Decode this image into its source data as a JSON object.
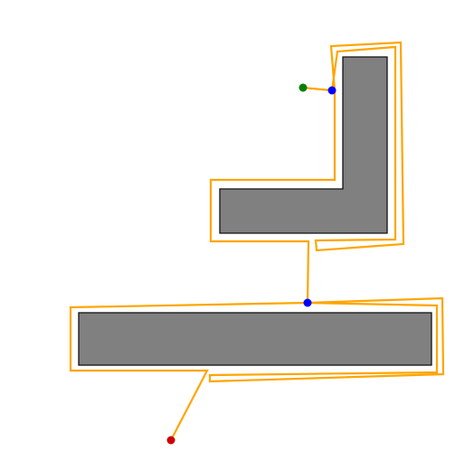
{
  "colors": {
    "background": "#ffffff",
    "obstacle_fill": "#808080",
    "obstacle_stroke": "#111111",
    "path": "#ffa500",
    "start_point": "#cc0000",
    "goal_point": "#008000",
    "waypoint": "#0000ff"
  },
  "elements": {
    "obstacles": [
      "l-shaped-obstacle",
      "bar-obstacle"
    ],
    "path": "orange-path",
    "markers": [
      "start-point",
      "waypoint-lower",
      "waypoint-upper",
      "goal-point"
    ]
  }
}
